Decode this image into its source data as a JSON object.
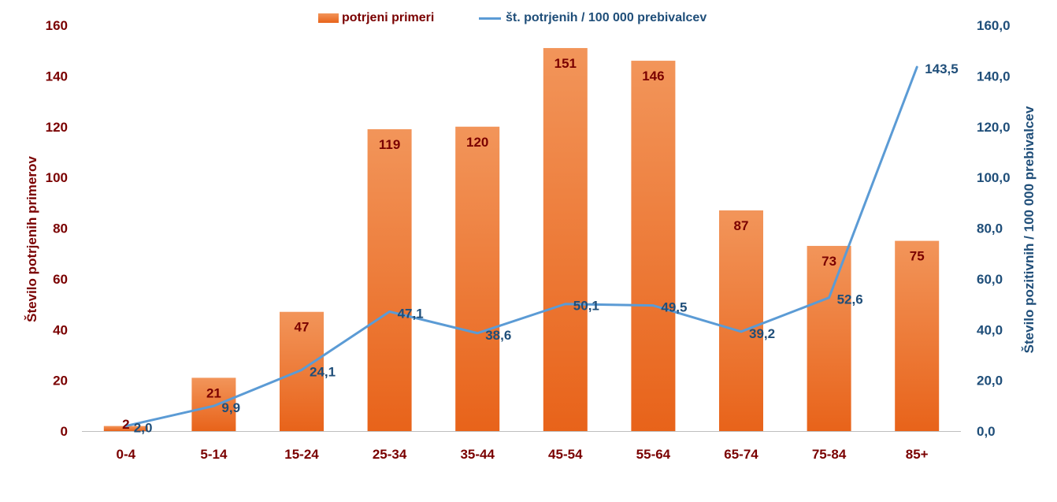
{
  "legend": {
    "bar_label": "potrjeni primeri",
    "line_label": "št. potrjenih / 100 000 prebivalcev"
  },
  "colors": {
    "bar_top": "#f2955a",
    "bar_bottom": "#e8631a",
    "line": "#5b9bd5",
    "left_axis_text": "#7a0000",
    "right_axis_text": "#1f4e79",
    "bar_label_text": "#7a0000",
    "line_label_text": "#1f4e79",
    "axis_line": "#bfbfbf"
  },
  "chart_data": {
    "type": "bar",
    "categories": [
      "0-4",
      "5-14",
      "15-24",
      "25-34",
      "35-44",
      "45-54",
      "55-64",
      "65-74",
      "75-84",
      "85+"
    ],
    "series": [
      {
        "name": "potrjeni primeri",
        "type": "bar",
        "axis": "left",
        "values": [
          2,
          21,
          47,
          119,
          120,
          151,
          146,
          87,
          73,
          75
        ],
        "labels": [
          "2",
          "21",
          "47",
          "119",
          "120",
          "151",
          "146",
          "87",
          "73",
          "75"
        ]
      },
      {
        "name": "št. potrjenih / 100 000 prebivalcev",
        "type": "line",
        "axis": "right",
        "values": [
          2.0,
          9.9,
          24.1,
          47.1,
          38.6,
          50.1,
          49.5,
          39.2,
          52.6,
          143.5
        ],
        "labels": [
          "2,0",
          "9,9",
          "24,1",
          "47,1",
          "38,6",
          "50,1",
          "49,5",
          "39,2",
          "52,6",
          "143,5"
        ]
      }
    ],
    "ylabel": "Število potrjenih primerov",
    "y2label": "Število pozitivnih / 100 000 prebivalcev",
    "ylim": [
      0,
      160
    ],
    "y2lim": [
      0,
      160
    ],
    "yticks": [
      "0",
      "20",
      "40",
      "60",
      "80",
      "100",
      "120",
      "140",
      "160"
    ],
    "y2ticks": [
      "0,0",
      "20,0",
      "40,0",
      "60,0",
      "80,0",
      "100,0",
      "120,0",
      "140,0",
      "160,0"
    ],
    "grid": false,
    "legend_position": "top"
  }
}
